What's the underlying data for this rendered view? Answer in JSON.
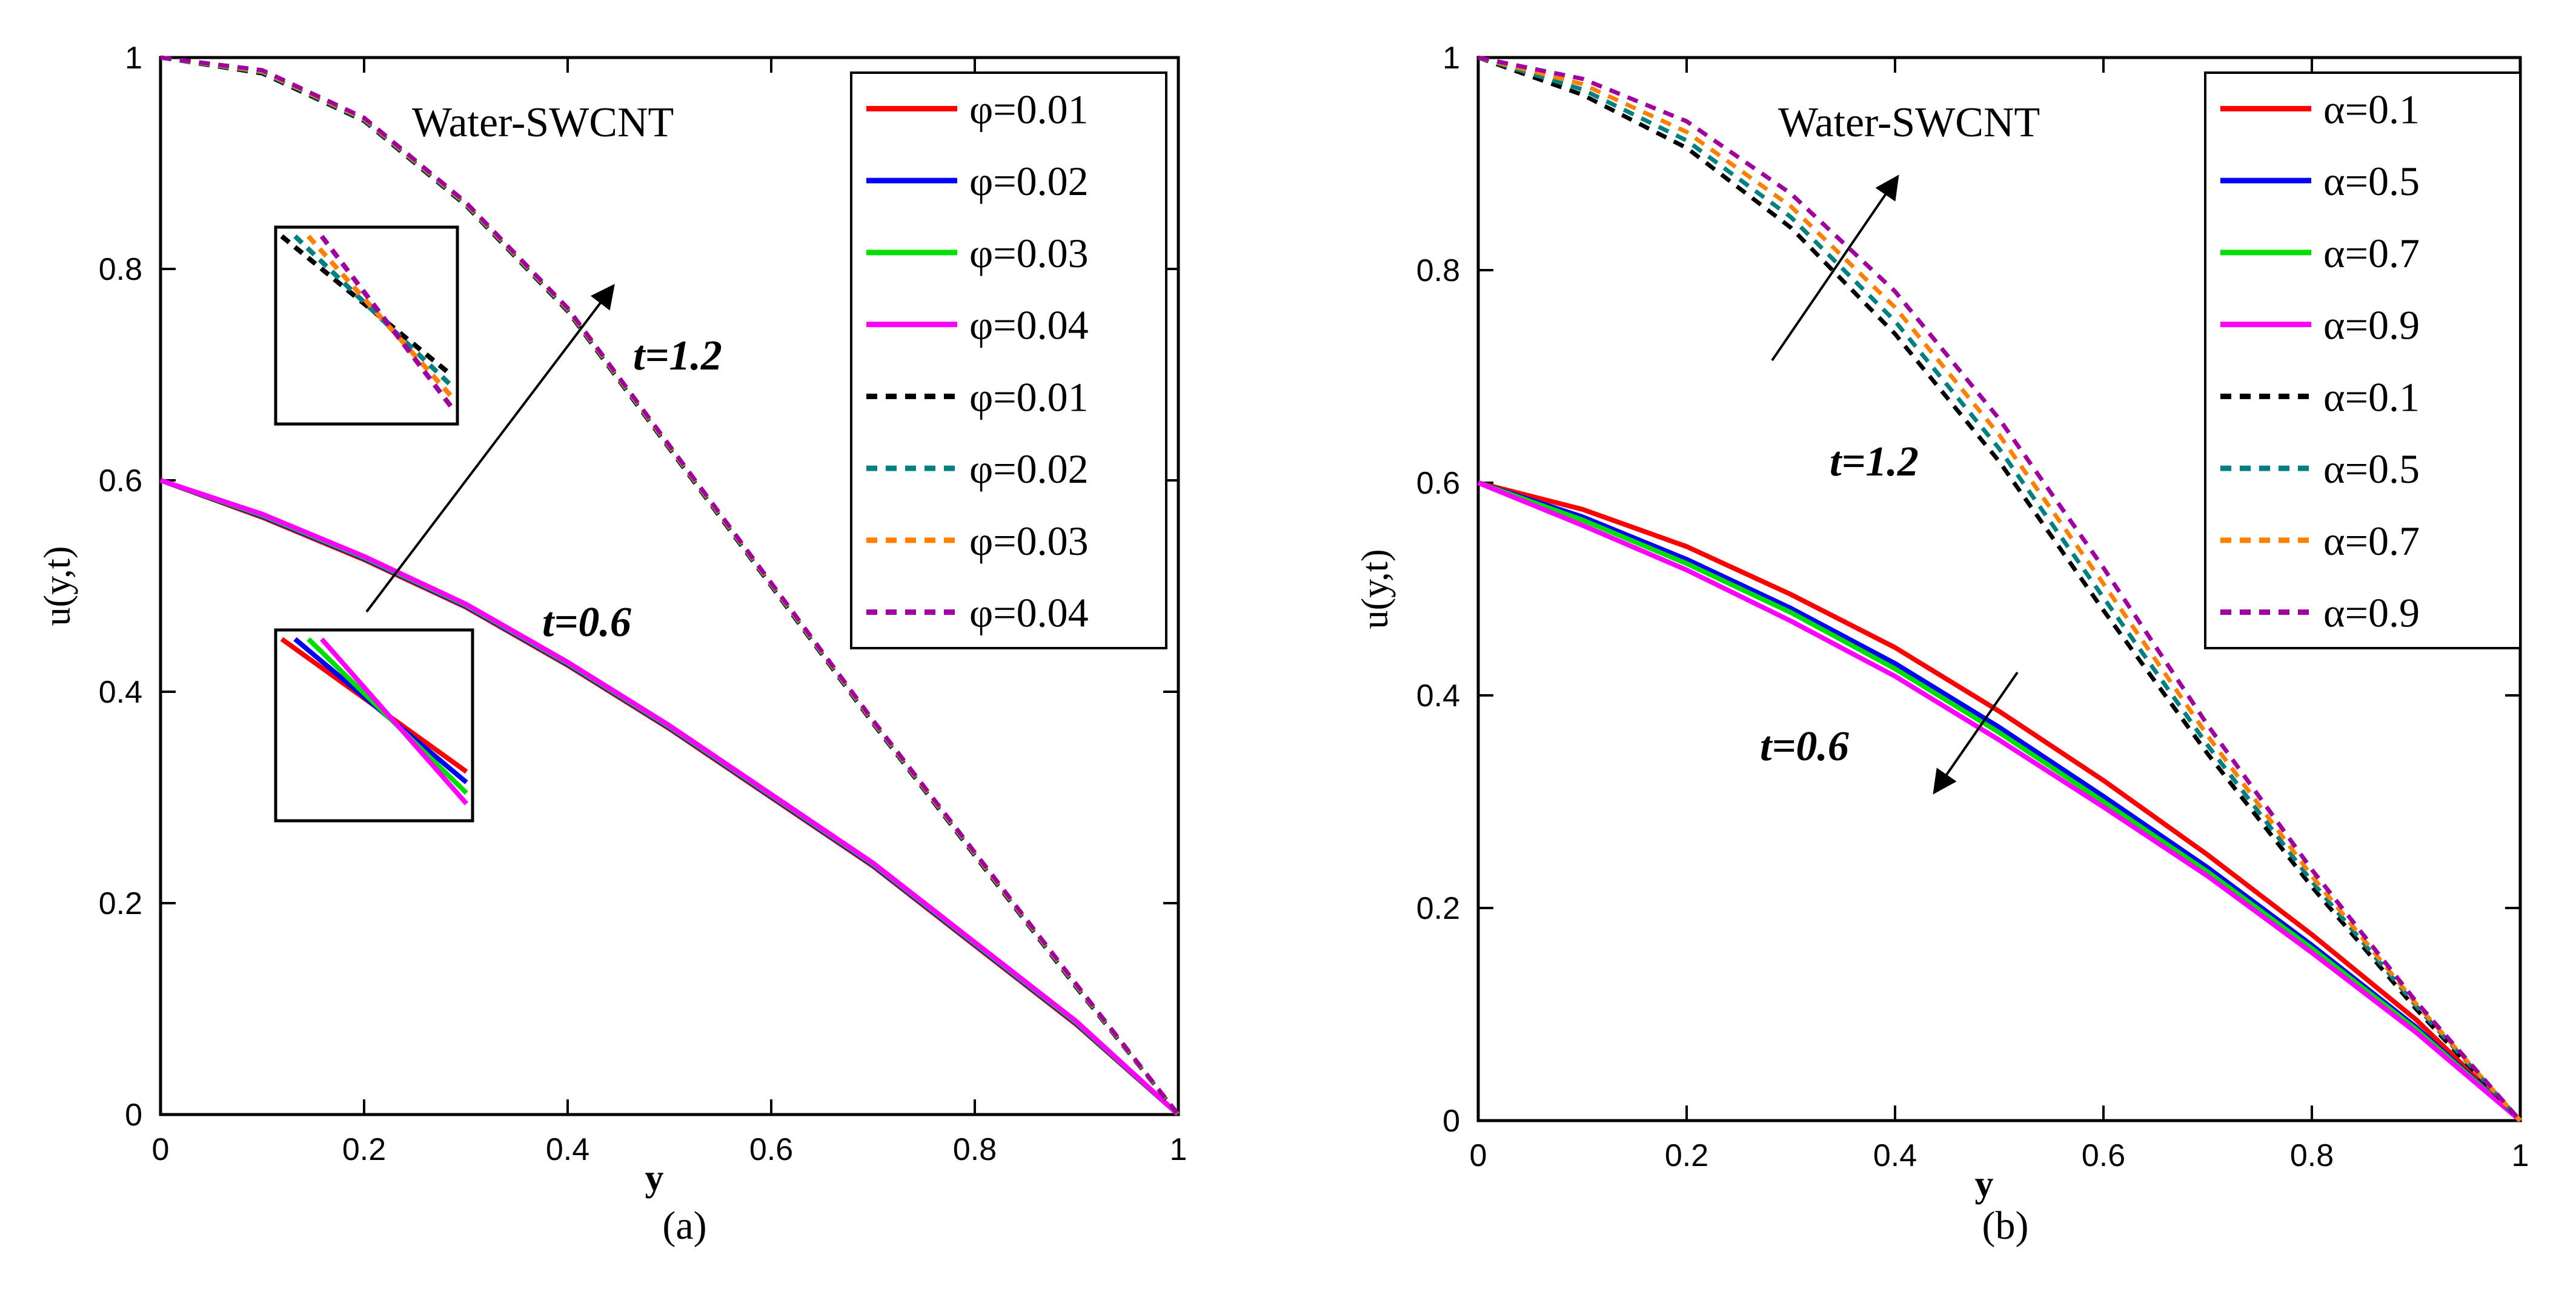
{
  "chart_data": [
    {
      "type": "line",
      "panel": "(a)",
      "title": "Water-SWCNT",
      "xlabel": "y",
      "ylabel": "u(y,t)",
      "xlim": [
        0,
        1
      ],
      "ylim": [
        0,
        1
      ],
      "xticks": [
        "0",
        "0.2",
        "0.4",
        "0.6",
        "0.8",
        "1"
      ],
      "yticks": [
        "0",
        "0.2",
        "0.4",
        "0.6",
        "0.8",
        "1"
      ],
      "legend_position": "top-right",
      "annotations": [
        "t=1.2",
        "t=0.6"
      ],
      "x": [
        0,
        0.1,
        0.2,
        0.3,
        0.4,
        0.5,
        0.6,
        0.7,
        0.8,
        0.9,
        1.0
      ],
      "series": [
        {
          "name": "φ=0.01",
          "group": "t=0.6",
          "color": "#ff0000",
          "dash": "solid",
          "values": [
            0.6,
            0.565,
            0.525,
            0.48,
            0.425,
            0.365,
            0.3,
            0.235,
            0.16,
            0.085,
            0.0
          ]
        },
        {
          "name": "φ=0.02",
          "group": "t=0.6",
          "color": "#0000ff",
          "dash": "solid",
          "values": [
            0.6,
            0.566,
            0.526,
            0.481,
            0.426,
            0.366,
            0.301,
            0.236,
            0.161,
            0.086,
            0.0
          ]
        },
        {
          "name": "φ=0.03",
          "group": "t=0.6",
          "color": "#00e000",
          "dash": "solid",
          "values": [
            0.6,
            0.567,
            0.527,
            0.482,
            0.427,
            0.367,
            0.302,
            0.237,
            0.162,
            0.087,
            0.0
          ]
        },
        {
          "name": "φ=0.04",
          "group": "t=0.6",
          "color": "#ff00ff",
          "dash": "solid",
          "values": [
            0.6,
            0.568,
            0.528,
            0.483,
            0.428,
            0.368,
            0.303,
            0.238,
            0.163,
            0.088,
            0.0
          ]
        },
        {
          "name": "φ=0.01",
          "group": "t=1.2",
          "color": "#000000",
          "dash": "dashed",
          "values": [
            1.0,
            0.985,
            0.94,
            0.86,
            0.76,
            0.63,
            0.5,
            0.37,
            0.245,
            0.12,
            0.0
          ]
        },
        {
          "name": "φ=0.02",
          "group": "t=1.2",
          "color": "#008080",
          "dash": "dashed",
          "values": [
            1.0,
            0.986,
            0.941,
            0.861,
            0.761,
            0.631,
            0.501,
            0.371,
            0.246,
            0.121,
            0.0
          ]
        },
        {
          "name": "φ=0.03",
          "group": "t=1.2",
          "color": "#ff8000",
          "dash": "dashed",
          "values": [
            1.0,
            0.987,
            0.942,
            0.862,
            0.762,
            0.632,
            0.502,
            0.372,
            0.247,
            0.122,
            0.0
          ]
        },
        {
          "name": "φ=0.04",
          "group": "t=1.2",
          "color": "#a000a0",
          "dash": "dashed",
          "values": [
            1.0,
            0.988,
            0.943,
            0.863,
            0.763,
            0.633,
            0.503,
            0.373,
            0.248,
            0.123,
            0.0
          ]
        }
      ]
    },
    {
      "type": "line",
      "panel": "(b)",
      "title": "Water-SWCNT",
      "xlabel": "y",
      "ylabel": "u(y,t)",
      "xlim": [
        0,
        1
      ],
      "ylim": [
        0,
        1
      ],
      "xticks": [
        "0",
        "0.2",
        "0.4",
        "0.6",
        "0.8",
        "1"
      ],
      "yticks": [
        "0",
        "0.2",
        "0.4",
        "0.6",
        "0.8",
        "1"
      ],
      "legend_position": "top-right",
      "annotations": [
        "t=1.2",
        "t=0.6"
      ],
      "x": [
        0,
        0.1,
        0.2,
        0.3,
        0.4,
        0.5,
        0.6,
        0.7,
        0.8,
        0.9,
        1.0
      ],
      "series": [
        {
          "name": "α=0.1",
          "group": "t=0.6",
          "color": "#ff0000",
          "dash": "solid",
          "values": [
            0.6,
            0.575,
            0.54,
            0.495,
            0.445,
            0.385,
            0.32,
            0.25,
            0.175,
            0.095,
            0.0
          ]
        },
        {
          "name": "α=0.5",
          "group": "t=0.6",
          "color": "#0000ff",
          "dash": "solid",
          "values": [
            0.6,
            0.568,
            0.528,
            0.482,
            0.43,
            0.37,
            0.305,
            0.238,
            0.165,
            0.088,
            0.0
          ]
        },
        {
          "name": "α=0.7",
          "group": "t=0.6",
          "color": "#00e000",
          "dash": "solid",
          "values": [
            0.6,
            0.565,
            0.524,
            0.478,
            0.425,
            0.365,
            0.3,
            0.234,
            0.162,
            0.086,
            0.0
          ]
        },
        {
          "name": "α=0.9",
          "group": "t=0.6",
          "color": "#ff00ff",
          "dash": "solid",
          "values": [
            0.6,
            0.56,
            0.518,
            0.47,
            0.418,
            0.358,
            0.295,
            0.23,
            0.158,
            0.083,
            0.0
          ]
        },
        {
          "name": "α=0.1",
          "group": "t=1.2",
          "color": "#000000",
          "dash": "dashed",
          "values": [
            1.0,
            0.965,
            0.915,
            0.84,
            0.74,
            0.62,
            0.48,
            0.345,
            0.22,
            0.105,
            0.0
          ]
        },
        {
          "name": "α=0.5",
          "group": "t=1.2",
          "color": "#008080",
          "dash": "dashed",
          "values": [
            1.0,
            0.97,
            0.922,
            0.85,
            0.752,
            0.632,
            0.492,
            0.353,
            0.225,
            0.108,
            0.0
          ]
        },
        {
          "name": "α=0.7",
          "group": "t=1.2",
          "color": "#ff8000",
          "dash": "dashed",
          "values": [
            1.0,
            0.975,
            0.93,
            0.86,
            0.765,
            0.645,
            0.505,
            0.362,
            0.23,
            0.11,
            0.0
          ]
        },
        {
          "name": "α=0.9",
          "group": "t=1.2",
          "color": "#a000a0",
          "dash": "dashed",
          "values": [
            1.0,
            0.98,
            0.94,
            0.872,
            0.78,
            0.66,
            0.52,
            0.372,
            0.236,
            0.112,
            0.0
          ]
        }
      ]
    }
  ]
}
